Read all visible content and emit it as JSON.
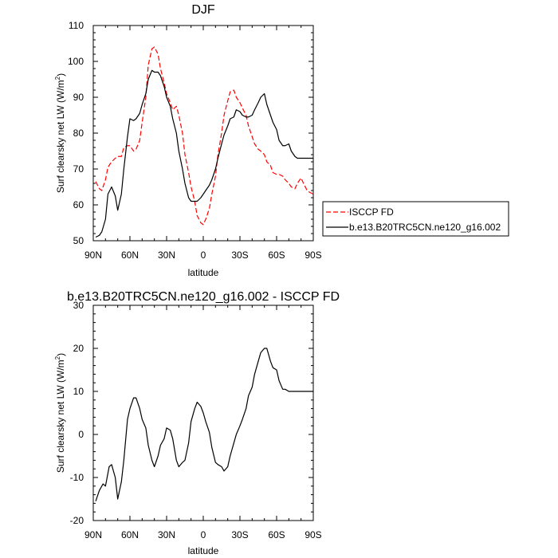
{
  "chart_data": [
    {
      "type": "line",
      "title": "DJF",
      "xlabel": "latitude",
      "ylabel": "Surf clearsky net LW (W/m",
      "ylabel_sup": "2",
      "ylabel_close": ")",
      "xlim": [
        90,
        -90
      ],
      "ylim": [
        50,
        110
      ],
      "xticks": [
        90,
        60,
        30,
        0,
        -30,
        -60,
        -90
      ],
      "xticklabels": [
        "90N",
        "60N",
        "30N",
        "0",
        "30S",
        "60S",
        "90S"
      ],
      "yticks": [
        50,
        60,
        70,
        80,
        90,
        100,
        110
      ],
      "yticklabels": [
        "50",
        "60",
        "70",
        "80",
        "90",
        "100",
        "110"
      ],
      "legend": {
        "location": "right-of-plot",
        "entries": [
          {
            "label": "ISCCP FD",
            "color": "#ff0000",
            "style": "dashed"
          },
          {
            "label": "b.e13.B20TRC5CN.ne120_g16.002",
            "color": "#000000",
            "style": "solid"
          }
        ]
      },
      "series": [
        {
          "name": "ISCCP FD",
          "color": "#ff0000",
          "style": "dashed",
          "x": [
            88,
            85,
            83,
            80,
            78,
            75,
            72,
            70,
            67,
            65,
            62,
            60,
            57,
            55,
            52,
            50,
            47,
            45,
            42,
            40,
            37,
            35,
            32,
            30,
            27,
            25,
            22,
            20,
            17,
            15,
            12,
            10,
            7,
            5,
            2,
            0,
            -2,
            -5,
            -7,
            -10,
            -12,
            -15,
            -17,
            -20,
            -22,
            -25,
            -27,
            -30,
            -32,
            -35,
            -37,
            -40,
            -42,
            -45,
            -47,
            -50,
            -52,
            -55,
            -57,
            -60,
            -62,
            -65,
            -67,
            -70,
            -72,
            -75,
            -77,
            -80,
            -82,
            -85,
            -87,
            -90
          ],
          "y": [
            66.5,
            64.5,
            64,
            67,
            70.5,
            72,
            73,
            73.5,
            73.5,
            76,
            76.5,
            76.5,
            75,
            75.5,
            78,
            83,
            90,
            99,
            103.5,
            104,
            102,
            98,
            94,
            91,
            88.5,
            86.5,
            87.5,
            85,
            80,
            74,
            69,
            65,
            61,
            57,
            55,
            54.5,
            56,
            59,
            63,
            68,
            74,
            80,
            85,
            89,
            91.5,
            92,
            90,
            88.5,
            87,
            85,
            82,
            79,
            77,
            75.5,
            75,
            74,
            72,
            71,
            69,
            68.5,
            68.5,
            68,
            67,
            66,
            65,
            64.5,
            66,
            67.5,
            66,
            64,
            63.5,
            63
          ]
        },
        {
          "name": "b.e13.B20TRC5CN.ne120_g16.002",
          "color": "#000000",
          "style": "solid",
          "x": [
            88,
            85,
            83,
            80,
            78,
            75,
            72,
            70,
            67,
            65,
            62,
            60,
            57,
            55,
            52,
            50,
            47,
            45,
            42,
            40,
            37,
            35,
            32,
            30,
            27,
            25,
            22,
            20,
            17,
            15,
            12,
            10,
            7,
            5,
            2,
            0,
            -2,
            -5,
            -7,
            -10,
            -12,
            -15,
            -17,
            -20,
            -22,
            -25,
            -27,
            -30,
            -32,
            -35,
            -37,
            -40,
            -42,
            -45,
            -47,
            -50,
            -52,
            -55,
            -57,
            -60,
            -62,
            -65,
            -67,
            -70,
            -72,
            -75,
            -77,
            -80,
            -82,
            -85,
            -87,
            -90
          ],
          "y": [
            51,
            51.5,
            52.5,
            56,
            63,
            65,
            62.5,
            58.5,
            63,
            70,
            79,
            84,
            83.5,
            84,
            85.5,
            88,
            91,
            95,
            97.5,
            97,
            97,
            96,
            93,
            90,
            87.5,
            84,
            80,
            75,
            70,
            66,
            62,
            61,
            61,
            61,
            62,
            63,
            64,
            65.5,
            67,
            70,
            73,
            77,
            79.5,
            82,
            84,
            84.5,
            86.5,
            86,
            85,
            84.5,
            84.5,
            85,
            86.5,
            88.5,
            90,
            91,
            88,
            85,
            83,
            81,
            78,
            76.5,
            76.5,
            77,
            75,
            73.5,
            73,
            73,
            73,
            73,
            73,
            73
          ]
        }
      ]
    },
    {
      "type": "line",
      "title": "b.e13.B20TRC5CN.ne120_g16.002 - ISCCP FD",
      "xlabel": "latitude",
      "ylabel": "Surf clearsky net LW (W/m",
      "ylabel_sup": "2",
      "ylabel_close": ")",
      "xlim": [
        90,
        -90
      ],
      "ylim": [
        -20,
        30
      ],
      "xticks": [
        90,
        60,
        30,
        0,
        -30,
        -60,
        -90
      ],
      "xticklabels": [
        "90N",
        "60N",
        "30N",
        "0",
        "30S",
        "60S",
        "90S"
      ],
      "yticks": [
        -20,
        -10,
        0,
        10,
        20,
        30
      ],
      "yticklabels": [
        "-20",
        "-10",
        "0",
        "10",
        "20",
        "30"
      ],
      "series": [
        {
          "name": "b.e13.B20TRC5CN.ne120_g16.002 - ISCCP FD",
          "color": "#000000",
          "style": "solid",
          "x": [
            88,
            85,
            82,
            80,
            77,
            75,
            72,
            70,
            67,
            65,
            62,
            60,
            57,
            55,
            52,
            50,
            47,
            45,
            42,
            40,
            37,
            35,
            32,
            30,
            27,
            25,
            22,
            20,
            17,
            15,
            12,
            10,
            7,
            5,
            2,
            0,
            -2,
            -5,
            -7,
            -10,
            -12,
            -15,
            -17,
            -20,
            -22,
            -25,
            -27,
            -30,
            -32,
            -35,
            -37,
            -40,
            -42,
            -45,
            -47,
            -50,
            -52,
            -55,
            -57,
            -60,
            -62,
            -65,
            -67,
            -70,
            -72,
            -75,
            -77,
            -80,
            -82,
            -85,
            -87,
            -90
          ],
          "y": [
            -15.5,
            -13,
            -11.5,
            -12,
            -7.5,
            -7,
            -10,
            -15,
            -11,
            -6,
            3.5,
            6,
            8.5,
            8.5,
            6,
            3.5,
            1.5,
            -2.5,
            -6,
            -7.5,
            -5,
            -2.5,
            -1,
            1.5,
            1,
            -1,
            -6,
            -7.5,
            -6.5,
            -6,
            -2,
            3,
            6,
            7.5,
            6.5,
            5,
            3,
            0.5,
            -3,
            -6.5,
            -7,
            -7.5,
            -8.5,
            -7.5,
            -5,
            -2,
            0,
            2,
            3.5,
            6,
            9,
            11,
            14,
            17,
            19,
            20,
            20,
            17,
            15.5,
            15,
            12.5,
            10.5,
            10.5,
            10,
            10,
            10,
            10,
            10,
            10,
            10,
            10,
            10
          ]
        }
      ]
    }
  ]
}
